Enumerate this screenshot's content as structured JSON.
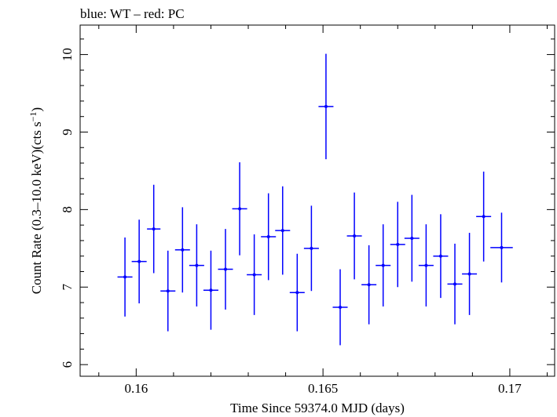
{
  "chart_data": {
    "type": "scatter",
    "title": "blue: WT – red: PC",
    "xlabel": "Time Since 59374.0 MJD (days)",
    "ylabel": "Count Rate (0.3–10.0 keV)(cts s",
    "ylabel_sup": "−1",
    "ylabel_close": ")",
    "xlim": [
      0.1585,
      0.1712
    ],
    "ylim": [
      5.85,
      10.38
    ],
    "x_ticks_major": [
      0.16,
      0.165,
      0.17
    ],
    "x_tick_labels": [
      "0.16",
      "0.165",
      "0.17"
    ],
    "x_ticks_minor": [
      0.159,
      0.161,
      0.162,
      0.163,
      0.164,
      0.166,
      0.167,
      0.168,
      0.169,
      0.171
    ],
    "y_ticks_major": [
      6,
      7,
      8,
      9,
      10
    ],
    "y_tick_labels": [
      "6",
      "7",
      "8",
      "9",
      "10"
    ],
    "y_ticks_minor": [
      6.2,
      6.4,
      6.6,
      6.8,
      7.2,
      7.4,
      7.6,
      7.8,
      8.2,
      8.4,
      8.6,
      8.8,
      9.2,
      9.4,
      9.6,
      9.8,
      10.2
    ],
    "grid": false,
    "color": "#0000ff",
    "series": [
      {
        "points": [
          {
            "x": 0.1597,
            "y": 7.13,
            "xerr": 0.0002,
            "yerr": 0.51
          },
          {
            "x": 0.16008,
            "y": 7.33,
            "xerr": 0.0002,
            "yerr": 0.54
          },
          {
            "x": 0.16047,
            "y": 7.75,
            "xerr": 0.00018,
            "yerr": 0.57
          },
          {
            "x": 0.16085,
            "y": 6.95,
            "xerr": 0.0002,
            "yerr": 0.52
          },
          {
            "x": 0.16124,
            "y": 7.48,
            "xerr": 0.0002,
            "yerr": 0.55
          },
          {
            "x": 0.16162,
            "y": 7.28,
            "xerr": 0.0002,
            "yerr": 0.53
          },
          {
            "x": 0.162,
            "y": 6.96,
            "xerr": 0.0002,
            "yerr": 0.51
          },
          {
            "x": 0.16239,
            "y": 7.23,
            "xerr": 0.0002,
            "yerr": 0.52
          },
          {
            "x": 0.16277,
            "y": 8.01,
            "xerr": 0.0002,
            "yerr": 0.6
          },
          {
            "x": 0.16316,
            "y": 7.16,
            "xerr": 0.0002,
            "yerr": 0.52
          },
          {
            "x": 0.16354,
            "y": 7.65,
            "xerr": 0.0002,
            "yerr": 0.56
          },
          {
            "x": 0.16392,
            "y": 7.73,
            "xerr": 0.0002,
            "yerr": 0.57
          },
          {
            "x": 0.16431,
            "y": 6.93,
            "xerr": 0.0002,
            "yerr": 0.5
          },
          {
            "x": 0.16469,
            "y": 7.5,
            "xerr": 0.0002,
            "yerr": 0.55
          },
          {
            "x": 0.16508,
            "y": 9.33,
            "xerr": 0.0002,
            "yerr": 0.68
          },
          {
            "x": 0.16546,
            "y": 6.74,
            "xerr": 0.0002,
            "yerr": 0.49
          },
          {
            "x": 0.16584,
            "y": 7.66,
            "xerr": 0.0002,
            "yerr": 0.56
          },
          {
            "x": 0.16623,
            "y": 7.03,
            "xerr": 0.0002,
            "yerr": 0.51
          },
          {
            "x": 0.16661,
            "y": 7.28,
            "xerr": 0.0002,
            "yerr": 0.53
          },
          {
            "x": 0.167,
            "y": 7.55,
            "xerr": 0.0002,
            "yerr": 0.55
          },
          {
            "x": 0.16738,
            "y": 7.63,
            "xerr": 0.0002,
            "yerr": 0.56
          },
          {
            "x": 0.16776,
            "y": 7.28,
            "xerr": 0.0002,
            "yerr": 0.53
          },
          {
            "x": 0.16815,
            "y": 7.4,
            "xerr": 0.0002,
            "yerr": 0.54
          },
          {
            "x": 0.16853,
            "y": 7.04,
            "xerr": 0.0002,
            "yerr": 0.52
          },
          {
            "x": 0.16892,
            "y": 7.17,
            "xerr": 0.0002,
            "yerr": 0.53
          },
          {
            "x": 0.1693,
            "y": 7.91,
            "xerr": 0.0002,
            "yerr": 0.58
          },
          {
            "x": 0.16978,
            "y": 7.51,
            "xerr": 0.0003,
            "yerr": 0.45
          }
        ]
      }
    ]
  }
}
